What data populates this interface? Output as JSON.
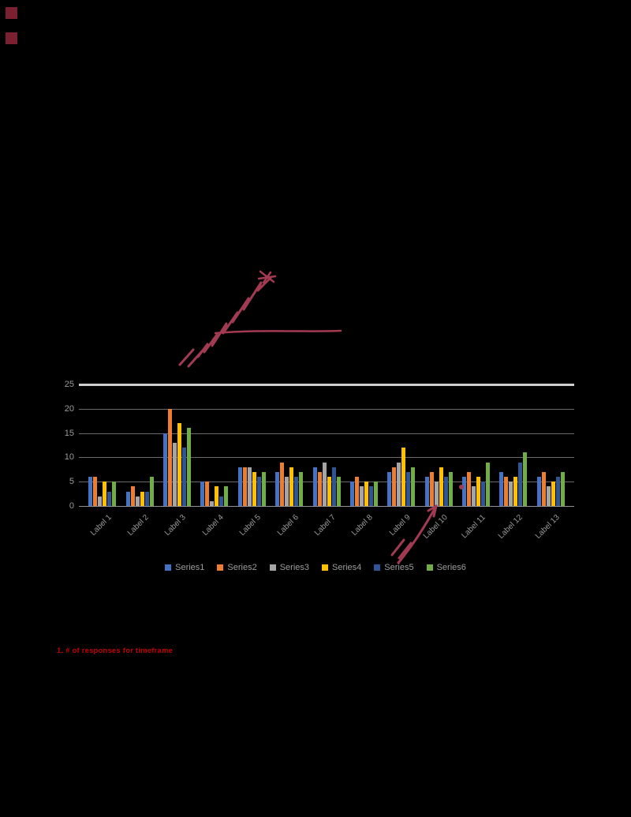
{
  "page": {
    "background": "#000000"
  },
  "decor": {
    "bullet_top_color": "#7a2030",
    "bullet_bottom_color": "#7a2030"
  },
  "annotations": {
    "ink_color": "#a23a52",
    "footnote_color": "#c00000",
    "footnote": "1. # of responses for timeframe"
  },
  "chart_data": {
    "type": "bar",
    "title": "",
    "xlabel": "",
    "ylabel": "",
    "ylim": [
      0,
      25
    ],
    "yticks": [
      0,
      5,
      10,
      15,
      20,
      25
    ],
    "grid": true,
    "legend_position": "bottom",
    "categories": [
      "Label 1",
      "Label 2",
      "Label 3",
      "Label 4",
      "Label 5",
      "Label 6",
      "Label 7",
      "Label 8",
      "Label 9",
      "Label 10",
      "Label 11",
      "Label 12",
      "Label 13"
    ],
    "series": [
      {
        "name": "Series1",
        "color": "#4472c4",
        "values": [
          6,
          3,
          15,
          5,
          8,
          7,
          8,
          5,
          7,
          6,
          6,
          7,
          6
        ]
      },
      {
        "name": "Series2",
        "color": "#ed7d31",
        "values": [
          6,
          4,
          20,
          5,
          8,
          9,
          7,
          6,
          8,
          7,
          7,
          6,
          7
        ]
      },
      {
        "name": "Series3",
        "color": "#a5a5a5",
        "values": [
          2,
          2,
          13,
          1,
          8,
          6,
          9,
          4,
          9,
          5,
          4,
          5,
          4
        ]
      },
      {
        "name": "Series4",
        "color": "#ffc000",
        "values": [
          5,
          3,
          17,
          4,
          7,
          8,
          6,
          5,
          12,
          8,
          6,
          6,
          5
        ]
      },
      {
        "name": "Series5",
        "color": "#2f5597",
        "values": [
          3,
          3,
          12,
          2,
          6,
          6,
          8,
          4,
          7,
          6,
          5,
          9,
          6
        ]
      },
      {
        "name": "Series6",
        "color": "#70ad47",
        "values": [
          5,
          6,
          16,
          4,
          7,
          7,
          6,
          5,
          8,
          7,
          9,
          11,
          7
        ]
      }
    ]
  }
}
